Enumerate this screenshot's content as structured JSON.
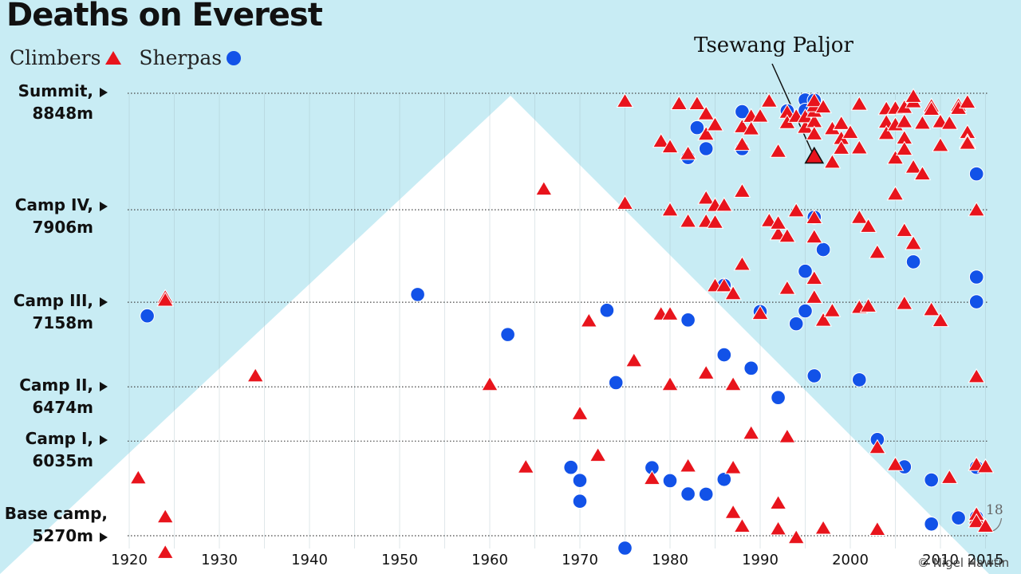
{
  "header": {
    "title": "Deaths on Everest"
  },
  "legend": {
    "climbers": "Climbers",
    "sherpas": "Sherpas"
  },
  "annotations": {
    "tsewang": "Tsewang Paljor",
    "count": "18",
    "credit": "© Nigel Hawtin"
  },
  "colors": {
    "climber": "#e8141c",
    "sherpa": "#1252e8",
    "sky": "#c8ecf4",
    "mountain": "#ffffff"
  },
  "chart_data": {
    "type": "scatter",
    "title": "Deaths on Everest",
    "xlim": [
      1920,
      2015
    ],
    "ylim": [
      5270,
      8848
    ],
    "x_ticks": [
      {
        "value": 1920,
        "label": "1920"
      },
      {
        "value": 1930,
        "label": "1930"
      },
      {
        "value": 1940,
        "label": "1940"
      },
      {
        "value": 1950,
        "label": "1950"
      },
      {
        "value": 1960,
        "label": "1960"
      },
      {
        "value": 1970,
        "label": "1970"
      },
      {
        "value": 1980,
        "label": "1980"
      },
      {
        "value": 1990,
        "label": "1990"
      },
      {
        "value": 2000,
        "label": "2000"
      },
      {
        "value": 2010,
        "label": "2010"
      },
      {
        "value": 2015,
        "label": "2015"
      }
    ],
    "y_levels": [
      {
        "name": "Summit,",
        "altitude": "8848m",
        "value": 8848
      },
      {
        "name": "Camp IV,",
        "altitude": "7906m",
        "value": 7906
      },
      {
        "name": "Camp III,",
        "altitude": "7158m",
        "value": 7158
      },
      {
        "name": "Camp II,",
        "altitude": "6474m",
        "value": 6474
      },
      {
        "name": "Camp I,",
        "altitude": "6035m",
        "value": 6035
      },
      {
        "name": "Base camp,",
        "altitude": "5270m",
        "value": 5270
      }
    ],
    "series": [
      {
        "name": "Climbers",
        "marker": "triangle",
        "points": [
          [
            1921,
            5735
          ],
          [
            1924,
            7195
          ],
          [
            1924,
            7172
          ],
          [
            1924,
            5420
          ],
          [
            1924,
            5132
          ],
          [
            1934,
            6560
          ],
          [
            1960,
            6490
          ],
          [
            1964,
            5823
          ],
          [
            1966,
            8070
          ],
          [
            1970,
            6254
          ],
          [
            1971,
            7004
          ],
          [
            1972,
            5917
          ],
          [
            1975,
            8781
          ],
          [
            1975,
            7955
          ],
          [
            1976,
            6683
          ],
          [
            1978,
            5730
          ],
          [
            1979,
            8457
          ],
          [
            1979,
            7060
          ],
          [
            1980,
            7060
          ],
          [
            1980,
            8412
          ],
          [
            1980,
            6490
          ],
          [
            1980,
            7901
          ],
          [
            1981,
            8761
          ],
          [
            1982,
            5831
          ],
          [
            1982,
            7810
          ],
          [
            1982,
            8357
          ],
          [
            1983,
            8761
          ],
          [
            1984,
            8679
          ],
          [
            1984,
            6583
          ],
          [
            1984,
            7997
          ],
          [
            1984,
            7809
          ],
          [
            1984,
            8514
          ],
          [
            1985,
            8590
          ],
          [
            1985,
            7802
          ],
          [
            1985,
            7289
          ],
          [
            1985,
            7938
          ],
          [
            1986,
            7940
          ],
          [
            1986,
            7289
          ],
          [
            1987,
            7225
          ],
          [
            1987,
            5817
          ],
          [
            1987,
            5455
          ],
          [
            1987,
            6490
          ],
          [
            1988,
            8431
          ],
          [
            1988,
            8053
          ],
          [
            1988,
            8575
          ],
          [
            1988,
            7462
          ],
          [
            1988,
            5344
          ],
          [
            1989,
            8659
          ],
          [
            1989,
            8557
          ],
          [
            1989,
            6096
          ],
          [
            1990,
            7065
          ],
          [
            1990,
            8660
          ],
          [
            1991,
            8782
          ],
          [
            1991,
            7815
          ],
          [
            1992,
            8376
          ],
          [
            1992,
            7708
          ],
          [
            1992,
            7795
          ],
          [
            1992,
            5531
          ],
          [
            1992,
            5322
          ],
          [
            1993,
            8692
          ],
          [
            1993,
            8608
          ],
          [
            1993,
            7689
          ],
          [
            1993,
            6068
          ],
          [
            1993,
            7268
          ],
          [
            1994,
            8659
          ],
          [
            1994,
            7895
          ],
          [
            1994,
            5252
          ],
          [
            1995,
            8570
          ],
          [
            1995,
            8655
          ],
          [
            1996,
            8617
          ],
          [
            1996,
            8517
          ],
          [
            1996,
            8700
          ],
          [
            1996,
            8744
          ],
          [
            1996,
            8785
          ],
          [
            1996,
            8336
          ],
          [
            1996,
            7839
          ],
          [
            1996,
            7683
          ],
          [
            1996,
            7348
          ],
          [
            1996,
            7195
          ],
          [
            1997,
            8734
          ],
          [
            1997,
            7010
          ],
          [
            1997,
            5328
          ],
          [
            1998,
            8559
          ],
          [
            1998,
            8288
          ],
          [
            1998,
            7086
          ],
          [
            1999,
            8597
          ],
          [
            1999,
            8480
          ],
          [
            1999,
            8601
          ],
          [
            1999,
            8401
          ],
          [
            2000,
            8528
          ],
          [
            2001,
            8403
          ],
          [
            2001,
            8757
          ],
          [
            2001,
            7841
          ],
          [
            2001,
            7114
          ],
          [
            2002,
            7769
          ],
          [
            2002,
            7124
          ],
          [
            2003,
            7559
          ],
          [
            2003,
            5981
          ],
          [
            2003,
            5318
          ],
          [
            2004,
            8720
          ],
          [
            2004,
            8612
          ],
          [
            2004,
            8520
          ],
          [
            2005,
            8724
          ],
          [
            2005,
            8590
          ],
          [
            2005,
            8321
          ],
          [
            2005,
            8030
          ],
          [
            2005,
            5842
          ],
          [
            2006,
            8731
          ],
          [
            2006,
            8615
          ],
          [
            2006,
            8483
          ],
          [
            2006,
            8393
          ],
          [
            2006,
            7735
          ],
          [
            2006,
            7145
          ],
          [
            2007,
            8776
          ],
          [
            2007,
            8820
          ],
          [
            2007,
            8248
          ],
          [
            2007,
            7630
          ],
          [
            2008,
            8603
          ],
          [
            2008,
            8193
          ],
          [
            2009,
            8742
          ],
          [
            2009,
            8716
          ],
          [
            2009,
            7095
          ],
          [
            2010,
            8615
          ],
          [
            2010,
            8423
          ],
          [
            2010,
            7007
          ],
          [
            2011,
            8602
          ],
          [
            2011,
            5738
          ],
          [
            2012,
            8748
          ],
          [
            2012,
            8723
          ],
          [
            2013,
            8773
          ],
          [
            2013,
            8528
          ],
          [
            2013,
            8455
          ],
          [
            2013,
            8441
          ],
          [
            2014,
            7901
          ],
          [
            2014,
            6554
          ],
          [
            2014,
            5842
          ],
          [
            2014,
            5412
          ],
          [
            2014,
            5440
          ],
          [
            2014,
            5381
          ],
          [
            2015,
            5825
          ],
          [
            2015,
            5344
          ]
        ]
      },
      {
        "name": "Sherpas",
        "marker": "circle",
        "points": [
          [
            1922,
            7048
          ],
          [
            1952,
            7221
          ],
          [
            1962,
            6897
          ],
          [
            1969,
            5823
          ],
          [
            1970,
            5717
          ],
          [
            1970,
            5549
          ],
          [
            1973,
            7093
          ],
          [
            1974,
            6508
          ],
          [
            1975,
            5170
          ],
          [
            1978,
            5820
          ],
          [
            1980,
            5715
          ],
          [
            1982,
            7015
          ],
          [
            1982,
            8328
          ],
          [
            1982,
            5608
          ],
          [
            1983,
            8570
          ],
          [
            1984,
            8400
          ],
          [
            1984,
            5606
          ],
          [
            1986,
            7295
          ],
          [
            1986,
            5726
          ],
          [
            1986,
            6733
          ],
          [
            1988,
            8699
          ],
          [
            1988,
            8400
          ],
          [
            1989,
            6625
          ],
          [
            1990,
            7083
          ],
          [
            1992,
            6387
          ],
          [
            1993,
            8706
          ],
          [
            1994,
            6984
          ],
          [
            1995,
            8794
          ],
          [
            1995,
            7409
          ],
          [
            1995,
            7088
          ],
          [
            1995,
            8711
          ],
          [
            1996,
            8702
          ],
          [
            1996,
            8792
          ],
          [
            1996,
            7846
          ],
          [
            1996,
            6563
          ],
          [
            1997,
            7584
          ],
          [
            2001,
            6531
          ],
          [
            2003,
            6048
          ],
          [
            2006,
            5827
          ],
          [
            2007,
            7485
          ],
          [
            2009,
            5721
          ],
          [
            2009,
            5365
          ],
          [
            2012,
            5414
          ],
          [
            2014,
            8196
          ],
          [
            2014,
            7362
          ],
          [
            2014,
            7162
          ],
          [
            2014,
            5823
          ],
          [
            2014,
            5414
          ],
          [
            2014,
            5420
          ]
        ]
      }
    ],
    "annotations": [
      {
        "text": "Tsewang Paljor",
        "x": 1996,
        "y": 8336
      },
      {
        "text": "18",
        "x": 2015,
        "y": 5380
      }
    ]
  }
}
